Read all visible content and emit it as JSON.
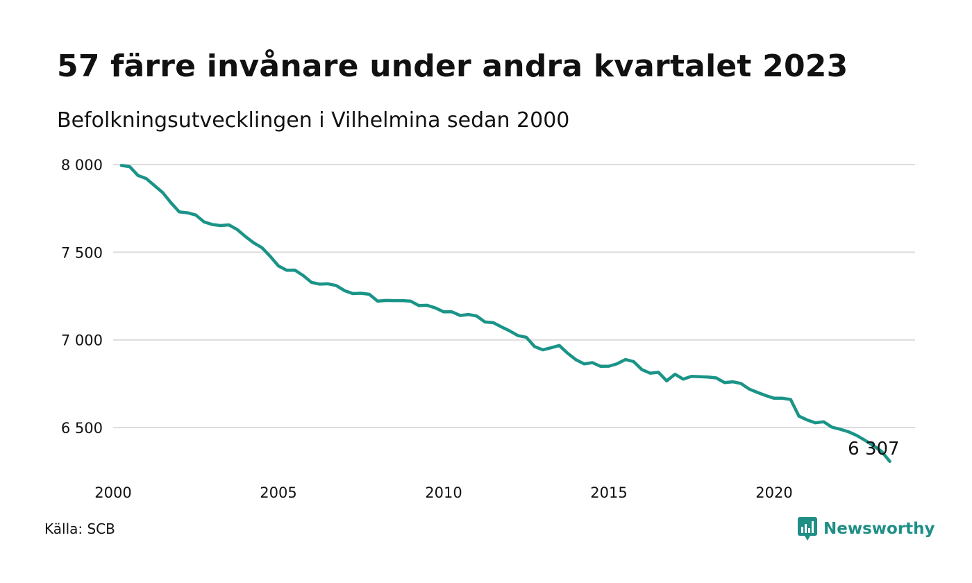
{
  "title": "57 färre invånare under andra kvartalet 2023",
  "subtitle": "Befolkningsutvecklingen i Vilhelmina sedan 2000",
  "source": "Källa: SCB",
  "logo_text": "Newsworthy",
  "colors": {
    "line": "#1b9488",
    "grid": "#dcdcdc",
    "brand": "#1f8f86"
  },
  "chart_data": {
    "type": "line",
    "title": "57 färre invånare under andra kvartalet 2023",
    "subtitle": "Befolkningsutvecklingen i Vilhelmina sedan 2000",
    "xlabel": "",
    "ylabel": "",
    "grid": true,
    "xlim": [
      2000,
      2023.5
    ],
    "ylim": [
      6270,
      8020
    ],
    "x_ticks": [
      2000,
      2005,
      2010,
      2015,
      2020
    ],
    "x_tick_labels": [
      "2000",
      "2005",
      "2010",
      "2015",
      "2020"
    ],
    "y_ticks": [
      6500,
      7000,
      7500,
      8000
    ],
    "y_tick_labels": [
      "6 500",
      "7 000",
      "7 500",
      "8 000"
    ],
    "end_label": "6 307",
    "series": [
      {
        "x": [
          2000.25,
          2000.5,
          2000.75,
          2001.0,
          2001.25,
          2001.5,
          2001.75,
          2002.0,
          2002.25,
          2002.5,
          2002.75,
          2003.0,
          2003.25,
          2003.5,
          2003.75,
          2004.0,
          2004.25,
          2004.5,
          2004.75,
          2005.0,
          2005.25,
          2005.5,
          2005.75,
          2006.0,
          2006.25,
          2006.5,
          2006.75,
          2007.0,
          2007.25,
          2007.5,
          2007.75,
          2008.0,
          2008.25,
          2008.5,
          2008.75,
          2009.0,
          2009.25,
          2009.5,
          2009.75,
          2010.0,
          2010.25,
          2010.5,
          2010.75,
          2011.0,
          2011.25,
          2011.5,
          2011.75,
          2012.0,
          2012.25,
          2012.5,
          2012.75,
          2013.0,
          2013.25,
          2013.5,
          2013.75,
          2014.0,
          2014.25,
          2014.5,
          2014.75,
          2015.0,
          2015.25,
          2015.5,
          2015.75,
          2016.0,
          2016.25,
          2016.5,
          2016.75,
          2017.0,
          2017.25,
          2017.5,
          2017.75,
          2018.0,
          2018.25,
          2018.5,
          2018.75,
          2019.0,
          2019.25,
          2019.5,
          2019.75,
          2020.0,
          2020.25,
          2020.5,
          2020.75,
          2021.0,
          2021.25,
          2021.5,
          2021.75,
          2022.0,
          2022.25,
          2022.5,
          2022.75,
          2023.0,
          2023.25,
          2023.5
        ],
        "values": [
          7995,
          7988,
          7938,
          7920,
          7880,
          7840,
          7782,
          7730,
          7725,
          7712,
          7673,
          7658,
          7652,
          7656,
          7630,
          7590,
          7554,
          7526,
          7477,
          7422,
          7397,
          7398,
          7367,
          7328,
          7318,
          7320,
          7310,
          7281,
          7264,
          7266,
          7260,
          7221,
          7225,
          7224,
          7224,
          7221,
          7196,
          7197,
          7182,
          7160,
          7160,
          7139,
          7145,
          7136,
          7102,
          7098,
          7074,
          7051,
          7024,
          7015,
          6962,
          6943,
          6955,
          6968,
          6924,
          6887,
          6863,
          6870,
          6849,
          6850,
          6864,
          6888,
          6876,
          6830,
          6810,
          6815,
          6766,
          6804,
          6776,
          6792,
          6790,
          6788,
          6783,
          6756,
          6761,
          6751,
          6719,
          6700,
          6682,
          6667,
          6667,
          6660,
          6565,
          6543,
          6527,
          6533,
          6502,
          6490,
          6476,
          6455,
          6427,
          6397,
          6364,
          6307
        ]
      }
    ]
  }
}
